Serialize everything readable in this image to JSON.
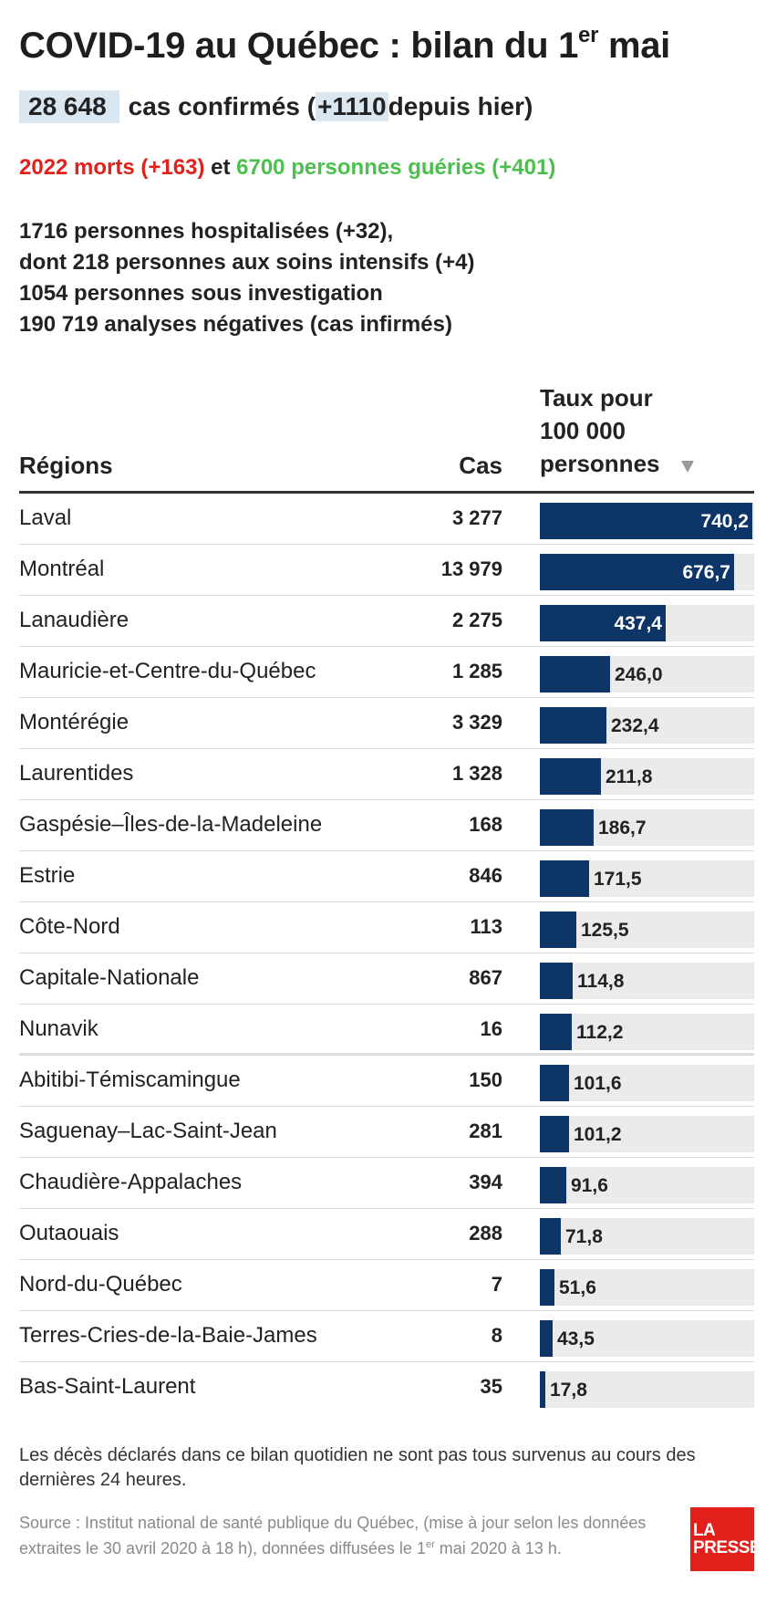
{
  "header": {
    "title_main": "COVID-19 au Québec : bilan du 1",
    "title_sup": "er",
    "title_end": " mai",
    "cases_total": "28 648",
    "cases_text_a": "cas confirmés (",
    "cases_new": "+1110",
    "cases_text_b": " depuis hier)"
  },
  "outcomes": {
    "deaths": "2022 morts (+163)",
    "joiner": " et ",
    "recovered": "6700 personnes guéries (+401)",
    "colors": {
      "deaths": "#e0211c",
      "recovered": "#4bc04d"
    }
  },
  "stats": [
    "1716 personnes hospitalisées (+32),",
    "dont 218 personnes aux soins intensifs (+4)",
    "1054 personnes sous investigation",
    "190 719 analyses négatives (cas infirmés)"
  ],
  "table": {
    "col_region": "Régions",
    "col_cases": "Cas",
    "col_rate_lines": [
      "Taux pour",
      "100 000",
      "personnes"
    ],
    "sort_icon": "triangle-down-icon",
    "bar_color": "#0d3567"
  },
  "chart_data": {
    "type": "bar",
    "orientation": "horizontal",
    "categories": [
      "Laval",
      "Montréal",
      "Lanaudière",
      "Mauricie-et-Centre-du-Québec",
      "Montérégie",
      "Laurentides",
      "Gaspésie–Îles-de-la-Madeleine",
      "Estrie",
      "Côte-Nord",
      "Capitale-Nationale",
      "Nunavik",
      "Abitibi-Témiscamingue",
      "Saguenay–Lac-Saint-Jean",
      "Chaudière-Appalaches",
      "Outaouais",
      "Nord-du-Québec",
      "Terres-Cries-de-la-Baie-James",
      "Bas-Saint-Laurent"
    ],
    "cases": [
      "3 277",
      "13 979",
      "2 275",
      "1 285",
      "3 329",
      "1 328",
      "168",
      "846",
      "113",
      "867",
      "16",
      "150",
      "281",
      "394",
      "288",
      "7",
      "8",
      "35"
    ],
    "values": [
      740.2,
      676.7,
      437.4,
      246.0,
      232.4,
      211.8,
      186.7,
      171.5,
      125.5,
      114.8,
      112.2,
      101.6,
      101.2,
      91.6,
      71.8,
      51.6,
      43.5,
      17.8
    ],
    "value_labels": [
      "740,2",
      "676,7",
      "437,4",
      "246,0",
      "232,4",
      "211,8",
      "186,7",
      "171,5",
      "125,5",
      "114,8",
      "112,2",
      "101,6",
      "101,2",
      "91,6",
      "71,8",
      "51,6",
      "43,5",
      "17,8"
    ],
    "xlim": [
      0,
      790
    ],
    "xlabel": "Taux pour 100 000 personnes"
  },
  "footer": {
    "note": "Les décès déclarés dans ce bilan quotidien ne sont pas tous survenus au cours des dernières 24 heures.",
    "source_a": "Source : Institut national de santé publique du Québec, (mise à jour selon les données extraites le 30 avril 2020 à 18 h), données diffusées le 1",
    "source_sup": "er",
    "source_b": " mai 2020 à 13 h.",
    "logo_line1": "LA",
    "logo_line2": "PRESSE"
  }
}
